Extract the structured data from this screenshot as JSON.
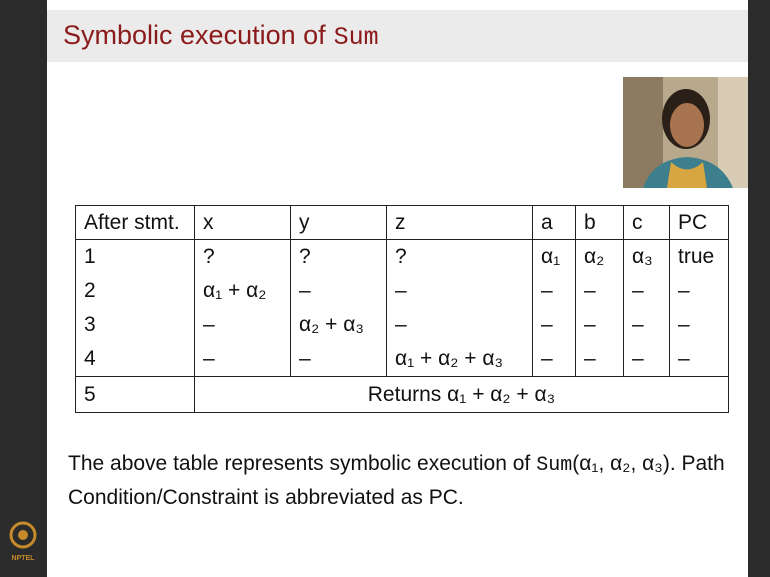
{
  "title": {
    "text": "Symbolic execution of",
    "code": "Sum"
  },
  "table": {
    "header": [
      "After stmt.",
      "x",
      "y",
      "z",
      "a",
      "b",
      "c",
      "PC"
    ],
    "rows": [
      [
        "1",
        "?",
        "?",
        "?",
        "α₁",
        "α₂",
        "α₃",
        "true"
      ],
      [
        "2",
        "α₁ + α₂",
        "–",
        "–",
        "–",
        "–",
        "–",
        "–"
      ],
      [
        "3",
        "–",
        "α₂ + α₃",
        "–",
        "–",
        "–",
        "–",
        "–"
      ],
      [
        "4",
        "–",
        "–",
        "α₁ + α₂ + α₃",
        "–",
        "–",
        "–",
        "–"
      ],
      [
        "5",
        "Returns α₁ + α₂ + α₃"
      ]
    ]
  },
  "caption": {
    "before": "The above table represents symbolic execution of",
    "code": "Sum",
    "args": "(α₁, α₂, α₃)",
    "after": ". Path Condition/Constraint is abbreviated as PC."
  },
  "logo": "NPTEL"
}
